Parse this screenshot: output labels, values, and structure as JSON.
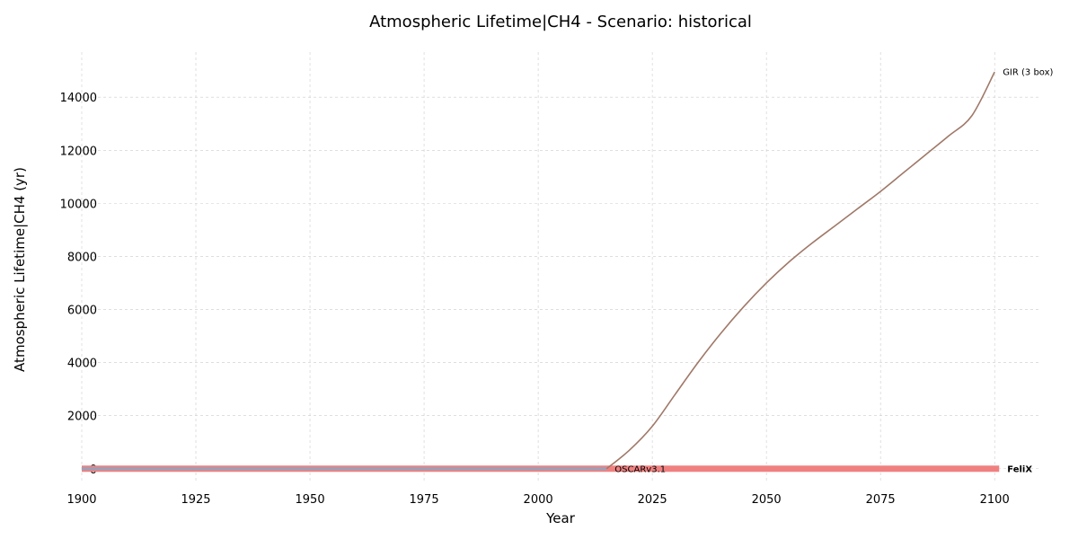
{
  "chart_data": {
    "type": "line",
    "title": "Atmospheric Lifetime|CH4 - Scenario: historical",
    "xlabel": "Year",
    "ylabel": "Atmospheric Lifetime|CH4 (yr)",
    "xlim": [
      1900,
      2110
    ],
    "ylim": [
      -550,
      15700
    ],
    "xticks": [
      1900,
      1925,
      1950,
      1975,
      2000,
      2025,
      2050,
      2075,
      2100
    ],
    "yticks": [
      0,
      2000,
      4000,
      6000,
      8000,
      10000,
      12000,
      14000
    ],
    "grid": true,
    "legend": "none (series labelled at line ends)",
    "series": [
      {
        "name": "FeliX",
        "color": "#f08080",
        "linewidth": "thick",
        "label_bold": true,
        "x": [
          1900,
          2101
        ],
        "y": [
          0,
          0
        ]
      },
      {
        "name": "OSCARv3.1",
        "color": "#9aa0b8",
        "linewidth": "medium",
        "label_bold": false,
        "x": [
          1900,
          2015
        ],
        "y": [
          0,
          0
        ]
      },
      {
        "name": "GIR (3 box)",
        "color": "#a07868",
        "linewidth": "thin",
        "label_bold": false,
        "x": [
          2015,
          2020,
          2025,
          2030,
          2035,
          2040,
          2045,
          2050,
          2055,
          2060,
          2065,
          2070,
          2075,
          2080,
          2085,
          2090,
          2095,
          2100
        ],
        "y": [
          0,
          700,
          1600,
          2800,
          4000,
          5100,
          6100,
          7000,
          7800,
          8500,
          9150,
          9800,
          10450,
          11150,
          11850,
          12550,
          13300,
          14950
        ]
      }
    ]
  }
}
